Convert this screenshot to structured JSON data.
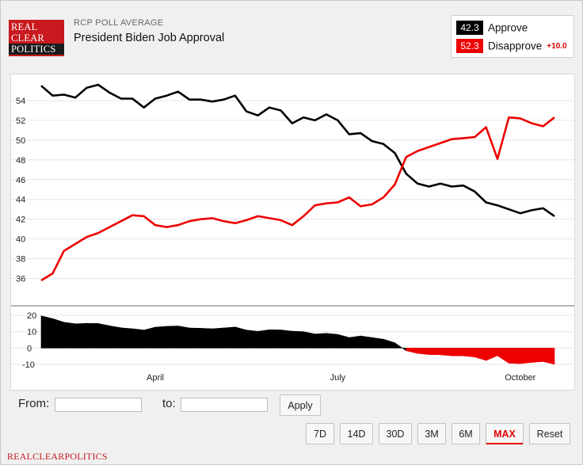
{
  "header": {
    "logo": [
      "REAL",
      "CLEAR",
      "POLITICS"
    ],
    "kicker": "RCP POLL AVERAGE",
    "title": "President Biden Job Approval"
  },
  "legend": {
    "approve": {
      "value": "42.3",
      "label": "Approve",
      "color": "#000000"
    },
    "disapprove": {
      "value": "52.3",
      "label": "Disapprove",
      "color": "#ee0000",
      "spread": "+10.0"
    }
  },
  "controls": {
    "from_label": "From:",
    "to_label": "to:",
    "from_value": "",
    "to_value": "",
    "apply_label": "Apply",
    "range_buttons": [
      "7D",
      "14D",
      "30D",
      "3M",
      "6M",
      "MAX",
      "Reset"
    ],
    "active_range": "MAX"
  },
  "footer": "REALCLEARPOLITICS",
  "chart_data": [
    {
      "type": "line",
      "title": "President Biden Job Approval",
      "x_ticks": [
        "April",
        "July",
        "October"
      ],
      "x_tick_index": [
        10,
        26,
        42
      ],
      "ylim": [
        35,
        56
      ],
      "y_ticks": [
        36,
        38,
        40,
        42,
        44,
        46,
        48,
        50,
        52,
        54
      ],
      "grid": true,
      "series": [
        {
          "name": "Approve",
          "color": "#000000",
          "values": [
            55.5,
            54.5,
            54.6,
            54.3,
            55.3,
            55.6,
            54.8,
            54.2,
            54.2,
            53.3,
            54.2,
            54.5,
            54.9,
            54.1,
            54.1,
            53.9,
            54.1,
            54.5,
            52.9,
            52.5,
            53.3,
            53.0,
            51.7,
            52.3,
            52.0,
            52.6,
            52.0,
            50.6,
            50.7,
            49.9,
            49.6,
            48.7,
            46.6,
            45.6,
            45.3,
            45.6,
            45.3,
            45.4,
            44.8,
            43.7,
            43.4,
            43.0,
            42.6,
            42.9,
            43.1,
            42.3
          ]
        },
        {
          "name": "Disapprove",
          "color": "#ee0000",
          "values": [
            35.8,
            36.5,
            38.8,
            39.5,
            40.2,
            40.6,
            41.2,
            41.8,
            42.4,
            42.3,
            41.4,
            41.2,
            41.4,
            41.8,
            42.0,
            42.1,
            41.8,
            41.6,
            41.9,
            42.3,
            42.1,
            41.9,
            41.4,
            42.3,
            43.4,
            43.6,
            43.7,
            44.2,
            43.3,
            43.5,
            44.2,
            45.5,
            48.3,
            48.9,
            49.3,
            49.7,
            50.1,
            50.2,
            50.3,
            51.3,
            48.1,
            52.3,
            52.2,
            51.7,
            51.4,
            52.3
          ]
        }
      ]
    },
    {
      "type": "area",
      "title": "",
      "ylim": [
        -11,
        22
      ],
      "y_ticks": [
        -10,
        0,
        10,
        20
      ],
      "series": [
        {
          "name": "Spread",
          "color_positive": "#000000",
          "color_negative": "#ee0000",
          "values": [
            19.7,
            18.0,
            15.8,
            14.8,
            15.1,
            15.0,
            13.6,
            12.4,
            11.8,
            11.0,
            12.8,
            13.3,
            13.5,
            12.3,
            12.1,
            11.8,
            12.3,
            12.9,
            11.0,
            10.2,
            11.2,
            11.1,
            10.3,
            10.0,
            8.6,
            9.0,
            8.3,
            6.4,
            7.4,
            6.4,
            5.4,
            3.2,
            -1.7,
            -3.3,
            -4.0,
            -4.1,
            -4.8,
            -4.8,
            -5.5,
            -7.6,
            -4.7,
            -9.3,
            -9.6,
            -8.8,
            -8.3,
            -10.0
          ]
        }
      ]
    }
  ]
}
